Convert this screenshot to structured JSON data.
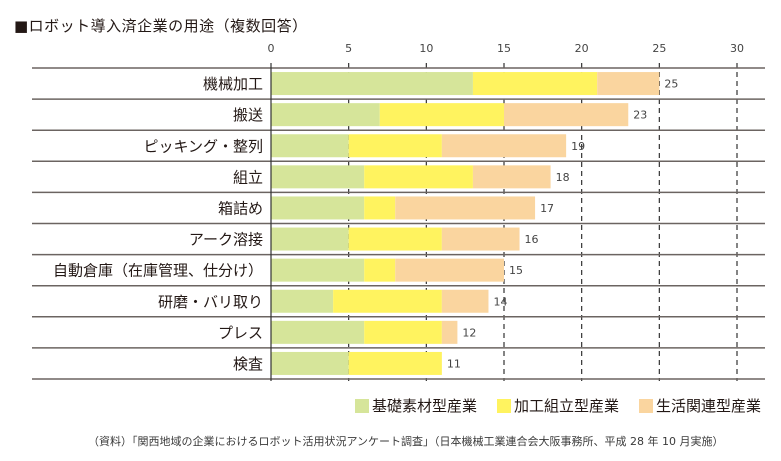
{
  "title": "■ロボット導入済企業の用途（複数回答）",
  "note": "（資料）「関西地域の企業におけるロボット活用状況アンケート調査」（日本機械工業連合会大阪事務所、平成 28 年 10 月実施）",
  "chart_data": {
    "type": "bar",
    "orientation": "horizontal",
    "stacked": true,
    "title": "■ロボット導入済企業の用途（複数回答）",
    "xlim": [
      0,
      30
    ],
    "xticks": [
      0,
      5,
      10,
      15,
      20,
      25,
      30
    ],
    "grid": "vertical dashed",
    "legend_position": "bottom-right",
    "categories": [
      "機械加工",
      "搬送",
      "ピッキング・整列",
      "組立",
      "箱詰め",
      "アーク溶接",
      "自動倉庫（在庫管理、仕分け）",
      "研磨・バリ取り",
      "プレス",
      "検査"
    ],
    "totals": [
      25,
      23,
      19,
      18,
      17,
      16,
      15,
      14,
      12,
      11
    ],
    "series": [
      {
        "name": "基礎素材型産業",
        "color": "#d6e59a",
        "values": [
          13,
          7,
          5,
          6,
          6,
          5,
          6,
          4,
          6,
          5
        ]
      },
      {
        "name": "加工組立型産業",
        "color": "#fff35f",
        "values": [
          8,
          8,
          6,
          7,
          2,
          6,
          2,
          7,
          5,
          6
        ]
      },
      {
        "name": "生活関連型産業",
        "color": "#fad59f",
        "values": [
          4,
          8,
          8,
          5,
          9,
          5,
          7,
          3,
          1,
          0
        ]
      }
    ]
  }
}
